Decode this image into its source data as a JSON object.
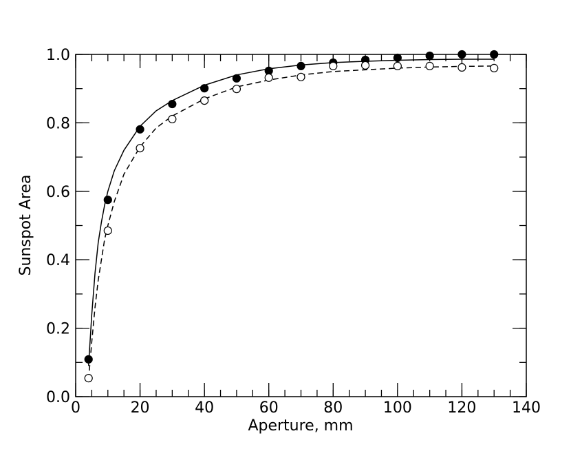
{
  "chart_data": {
    "type": "scatter",
    "xlabel": "Aperture, mm",
    "ylabel": "Sunspot Area",
    "xlim": [
      0,
      140
    ],
    "ylim": [
      0,
      1
    ],
    "xticks": [
      0,
      20,
      40,
      60,
      80,
      100,
      120,
      140
    ],
    "yticks": [
      {
        "value": 0,
        "label": "0.0"
      },
      0.2,
      0.4,
      0.6,
      0.8,
      {
        "value": 1,
        "label": "1.0"
      }
    ],
    "minor_ticks": {
      "x": 5,
      "y": 0.1
    },
    "series": [
      {
        "type": "line",
        "dash": "solid",
        "color": "#000000",
        "x": [
          4,
          5,
          6,
          7,
          8,
          9,
          10,
          12,
          15,
          20,
          25,
          30,
          40,
          50,
          60,
          70,
          80,
          90,
          100,
          110,
          120,
          130
        ],
        "values": [
          0.09,
          0.24,
          0.36,
          0.45,
          0.51,
          0.56,
          0.6,
          0.66,
          0.72,
          0.79,
          0.835,
          0.865,
          0.91,
          0.94,
          0.958,
          0.969,
          0.976,
          0.98,
          0.983,
          0.985,
          0.986,
          0.986
        ]
      },
      {
        "type": "line",
        "dash": "dashed",
        "color": "#000000",
        "x": [
          4,
          5,
          6,
          7,
          8,
          9,
          10,
          12,
          15,
          20,
          25,
          30,
          40,
          50,
          60,
          70,
          80,
          90,
          100,
          110,
          120,
          130
        ],
        "values": [
          0.05,
          0.16,
          0.26,
          0.34,
          0.4,
          0.46,
          0.5,
          0.57,
          0.65,
          0.73,
          0.785,
          0.82,
          0.87,
          0.905,
          0.925,
          0.94,
          0.95,
          0.955,
          0.96,
          0.963,
          0.965,
          0.966
        ]
      },
      {
        "type": "scatter",
        "marker": "filled",
        "color": "#000000",
        "x": [
          4,
          10,
          20,
          30,
          40,
          50,
          60,
          70,
          80,
          90,
          100,
          110,
          120,
          130
        ],
        "values": [
          0.109,
          0.575,
          0.781,
          0.855,
          0.901,
          0.93,
          0.952,
          0.966,
          0.976,
          0.984,
          0.99,
          0.996,
          1.0,
          1.0
        ]
      },
      {
        "type": "scatter",
        "marker": "open",
        "color": "#000000",
        "x": [
          4,
          10,
          20,
          30,
          40,
          50,
          60,
          70,
          80,
          90,
          100,
          110,
          120,
          130
        ],
        "values": [
          0.054,
          0.485,
          0.726,
          0.811,
          0.865,
          0.899,
          0.932,
          0.934,
          0.966,
          0.968,
          0.966,
          0.966,
          0.962,
          0.96
        ]
      }
    ]
  }
}
